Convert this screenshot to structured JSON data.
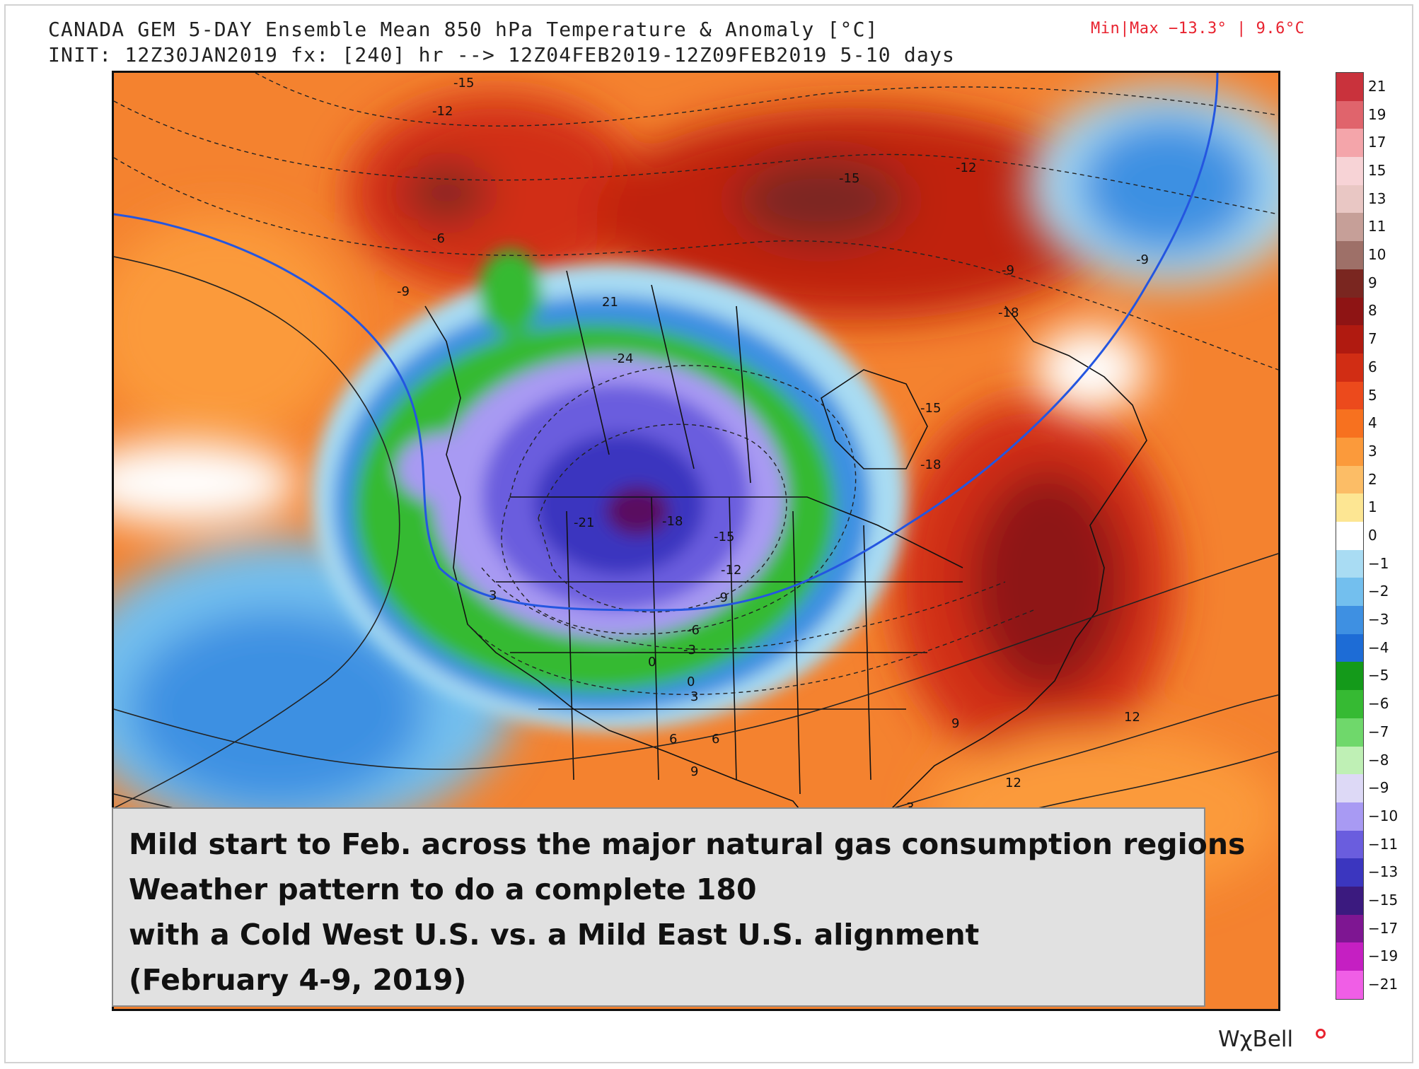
{
  "header": {
    "line1": "CANADA GEM 5-DAY Ensemble Mean 850 hPa Temperature & Anomaly [°C]",
    "line2": "INIT: 12Z30JAN2019 fx: [240] hr --> 12Z04FEB2019-12Z09FEB2019 5-10 days",
    "minmax": "Min|Max −13.3° | 9.6°C"
  },
  "caption": {
    "lines": [
      "Mild start to Feb. across the major natural gas consumption regions",
      "Weather pattern to do a complete 180",
      "with a Cold West U.S. vs. a Mild East U.S. alignment",
      "(February 4-9, 2019)"
    ]
  },
  "colorbar": {
    "labels": [
      "21",
      "19",
      "17",
      "15",
      "13",
      "11",
      "10",
      "9",
      "8",
      "7",
      "6",
      "5",
      "4",
      "3",
      "2",
      "1",
      "0",
      "−1",
      "−2",
      "−3",
      "−4",
      "−5",
      "−6",
      "−7",
      "−8",
      "−9",
      "−10",
      "−11",
      "−13",
      "−15",
      "−17",
      "−19",
      "−21"
    ],
    "colors": [
      "#c9323c",
      "#e0646c",
      "#f4a5aa",
      "#f7d3d6",
      "#e9c7c4",
      "#c69f98",
      "#9e7068",
      "#7a2620",
      "#8e1414",
      "#b01a10",
      "#d12d14",
      "#ec4a1c",
      "#f7711f",
      "#fb9a3b",
      "#fcbd66",
      "#fde693",
      "#ffffff",
      "#a9dcf3",
      "#73bfee",
      "#3e90e2",
      "#1d6cd6",
      "#149a1a",
      "#36ba33",
      "#6fd86b",
      "#bff0b5",
      "#ddd9f6",
      "#a89af3",
      "#6a5dde",
      "#3b36bf",
      "#3b1a7f",
      "#7e1692",
      "#c51fc2",
      "#f05ee6"
    ]
  },
  "map": {
    "base_color": "#f4822f",
    "contour_labels": [
      "-15",
      "-12",
      "-6",
      "-9",
      "21",
      "-15",
      "-24",
      "-21",
      "-18",
      "-15",
      "-12",
      "-9",
      "-6",
      "-3",
      "0",
      "0",
      "3",
      "6",
      "9",
      "12",
      "-12",
      "-9",
      "-18",
      "-15",
      "-18",
      "-9",
      "3",
      "6",
      "9",
      "12",
      "3"
    ]
  },
  "brand": {
    "name": "WχBell"
  }
}
